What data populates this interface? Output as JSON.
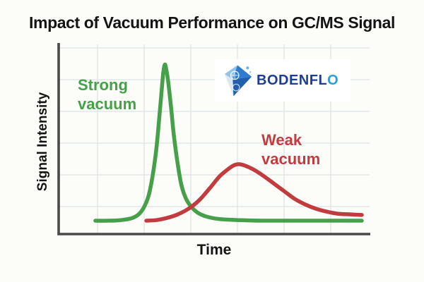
{
  "page": {
    "title": "Impact of Vacuum Performance on GC/MS Signal",
    "background": "#fcfcf9"
  },
  "colors": {
    "title_text": "#141414",
    "axis": "#4a4a4a",
    "grid": "#e2e6e9",
    "green": "#45a049",
    "red": "#c23b3e",
    "logo_navy": "#1c3f93",
    "logo_blue": "#2b9fd9",
    "logo_bg": "#ffffff"
  },
  "labels": {
    "strong_vacuum": "Strong\nvacuum",
    "weak_vacuum": "Weak\nvacuum",
    "time": "Time",
    "signal_intensity": "Signal Intensity"
  },
  "logo": {
    "brand": "BODENFLO",
    "text_main": "BODENFL",
    "text_accent": "O"
  },
  "chart_data": {
    "type": "line",
    "title": "Impact of Vacuum Performance on GC/MS Signal",
    "xlabel": "Time",
    "ylabel": "Signal Intensity",
    "x_range": [
      0,
      1
    ],
    "y_range": [
      0,
      1
    ],
    "grid": true,
    "tick_labels": "none (conceptual diagram, unlabeled axes)",
    "legend_position": "inline annotations",
    "series": [
      {
        "name": "Strong vacuum",
        "color": "#45a049",
        "shape": "tall narrow early peak",
        "peak": {
          "t": 0.341,
          "intensity": 1.0
        },
        "points": [
          [
            0.118,
            0.079
          ],
          [
            0.164,
            0.079
          ],
          [
            0.202,
            0.083
          ],
          [
            0.232,
            0.092
          ],
          [
            0.255,
            0.113
          ],
          [
            0.273,
            0.154
          ],
          [
            0.289,
            0.225
          ],
          [
            0.302,
            0.342
          ],
          [
            0.314,
            0.5
          ],
          [
            0.323,
            0.675
          ],
          [
            0.33,
            0.821
          ],
          [
            0.336,
            0.946
          ],
          [
            0.341,
            1.0
          ],
          [
            0.345,
            0.983
          ],
          [
            0.352,
            0.904
          ],
          [
            0.361,
            0.758
          ],
          [
            0.37,
            0.592
          ],
          [
            0.382,
            0.425
          ],
          [
            0.395,
            0.288
          ],
          [
            0.411,
            0.204
          ],
          [
            0.43,
            0.154
          ],
          [
            0.452,
            0.121
          ],
          [
            0.482,
            0.1
          ],
          [
            0.52,
            0.088
          ],
          [
            0.573,
            0.083
          ],
          [
            0.652,
            0.079
          ],
          [
            0.789,
            0.079
          ],
          [
            0.975,
            0.079
          ]
        ]
      },
      {
        "name": "Weak vacuum",
        "color": "#c23b3e",
        "shape": "short broad late peak with tailing",
        "peak": {
          "t": 0.58,
          "intensity": 0.413
        },
        "points": [
          [
            0.282,
            0.079
          ],
          [
            0.316,
            0.083
          ],
          [
            0.35,
            0.096
          ],
          [
            0.384,
            0.117
          ],
          [
            0.418,
            0.15
          ],
          [
            0.452,
            0.2
          ],
          [
            0.486,
            0.271
          ],
          [
            0.516,
            0.338
          ],
          [
            0.539,
            0.375
          ],
          [
            0.561,
            0.404
          ],
          [
            0.58,
            0.413
          ],
          [
            0.6,
            0.404
          ],
          [
            0.625,
            0.383
          ],
          [
            0.657,
            0.346
          ],
          [
            0.691,
            0.3
          ],
          [
            0.725,
            0.254
          ],
          [
            0.759,
            0.208
          ],
          [
            0.793,
            0.175
          ],
          [
            0.827,
            0.15
          ],
          [
            0.861,
            0.133
          ],
          [
            0.895,
            0.121
          ],
          [
            0.93,
            0.117
          ],
          [
            0.975,
            0.113
          ]
        ]
      }
    ],
    "annotations": [
      {
        "text": "Strong\nvacuum",
        "color": "#45a049",
        "position": "upper left, beside green peak"
      },
      {
        "text": "Weak\nvacuum",
        "color": "#c23b3e",
        "position": "above right shoulder of red peak"
      }
    ]
  }
}
